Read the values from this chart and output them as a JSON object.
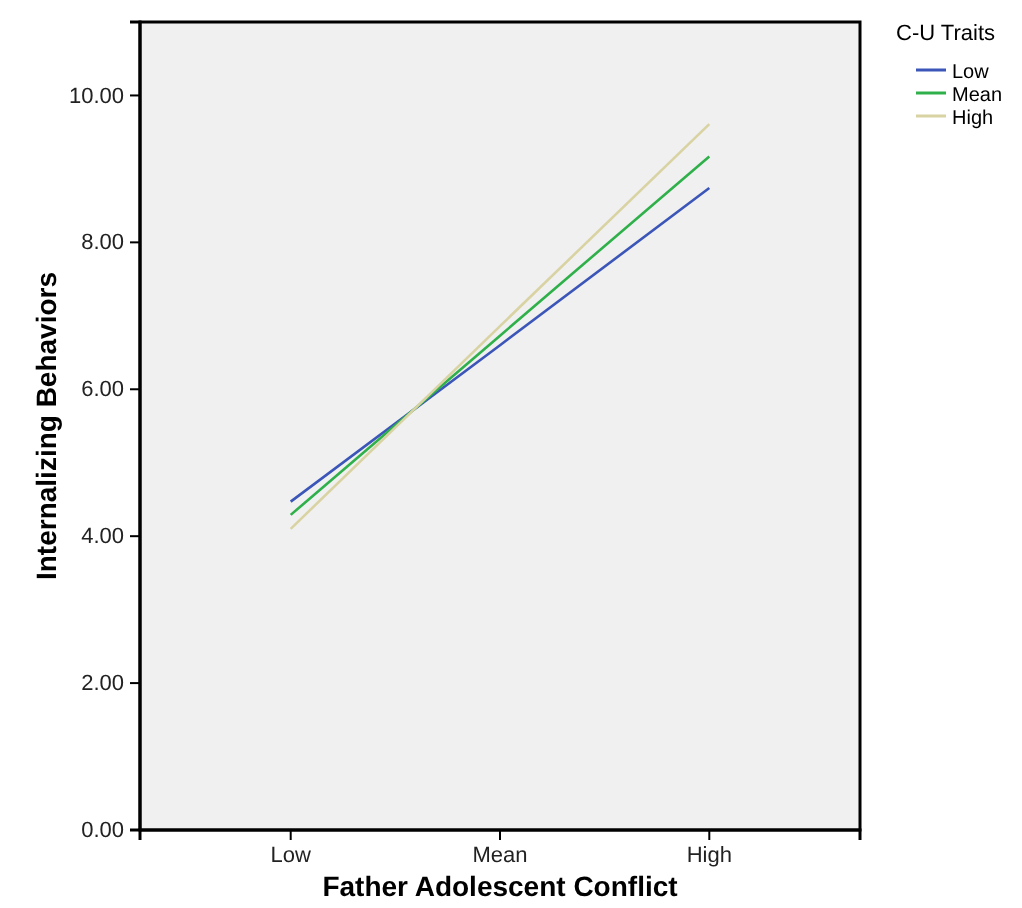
{
  "chart_data": {
    "type": "line",
    "xlabel": "Father Adolescent Conflict",
    "ylabel": "Internalizing Behaviors",
    "legend_title": "C-U Traits",
    "categories": [
      "Low",
      "Mean",
      "High"
    ],
    "series": [
      {
        "name": "Low",
        "color": "#3b56b8",
        "values": [
          4.47,
          6.6,
          8.74
        ]
      },
      {
        "name": "Mean",
        "color": "#2fb04a",
        "values": [
          4.29,
          6.73,
          9.17
        ]
      },
      {
        "name": "High",
        "color": "#d9d3a3",
        "values": [
          4.1,
          6.86,
          9.61
        ]
      }
    ],
    "ylim": [
      0,
      11
    ],
    "yticks": [
      {
        "value": 0,
        "label": "0.00"
      },
      {
        "value": 2,
        "label": "2.00"
      },
      {
        "value": 4,
        "label": "4.00"
      },
      {
        "value": 6,
        "label": "6.00"
      },
      {
        "value": 8,
        "label": "8.00"
      },
      {
        "value": 10,
        "label": "10.00"
      }
    ],
    "grid": false,
    "legend": "top right",
    "marker": "none",
    "line_style": "solid"
  }
}
